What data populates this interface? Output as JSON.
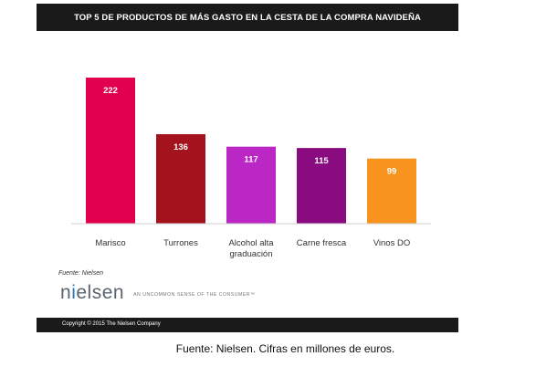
{
  "chart_data": {
    "type": "bar",
    "title": "TOP 5 DE PRODUCTOS DE MÁS GASTO EN LA CESTA DE LA COMPRA NAVIDEÑA",
    "categories": [
      "Marisco",
      "Turrones",
      "Alcohol alta graduación",
      "Carne fresca",
      "Vinos DO"
    ],
    "category_lines": [
      [
        "Marisco"
      ],
      [
        "Turrones"
      ],
      [
        "Alcohol alta",
        "graduación"
      ],
      [
        "Carne fresca"
      ],
      [
        "Vinos DO"
      ]
    ],
    "values": [
      222,
      136,
      117,
      115,
      99
    ],
    "colors": [
      "#e0004d",
      "#a3121d",
      "#bb27c4",
      "#8a0a80",
      "#f7931e"
    ],
    "ylim": [
      0,
      222
    ],
    "grid": false,
    "legend": "none"
  },
  "source_note": "Fuente: Nielsen",
  "brand": {
    "logo_prefix": "n",
    "logo_accent": "i",
    "logo_suffix": "elsen",
    "tagline": "AN UNCOMMON SENSE OF THE CONSUMER™"
  },
  "footer": {
    "copyright": "Copyright © 2015 The Nielsen Company"
  },
  "caption": "Fuente: Nielsen. Cifras en millones de euros."
}
